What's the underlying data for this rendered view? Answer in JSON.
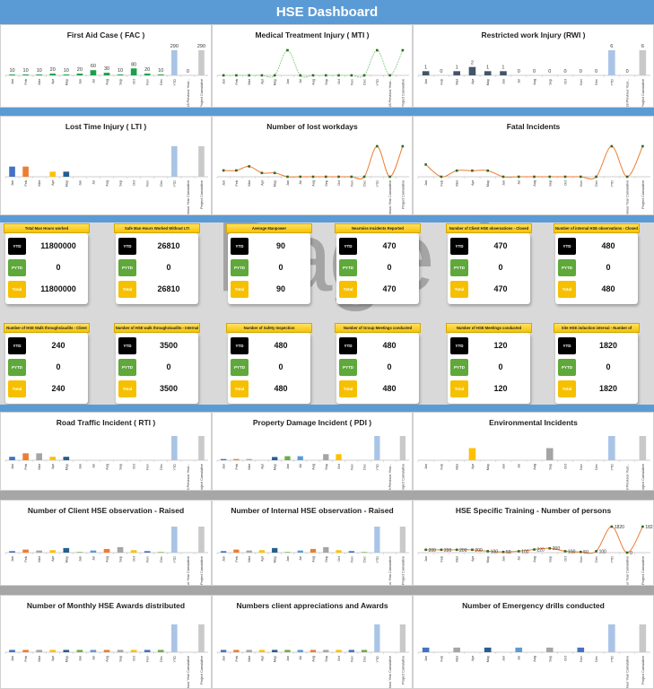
{
  "header": {
    "title": "HSE Dashboard"
  },
  "colors": {
    "header": "#5b9bd5",
    "ytd": "#000000",
    "pytd": "#5fa83a",
    "total": "#f6c000",
    "card_head": "#f5c400"
  },
  "watermark": "Page 1",
  "categories_full": [
    "Jan",
    "Feb",
    "Mar",
    "Apr",
    "May",
    "Jun",
    "Jul",
    "Aug",
    "Sep",
    "Oct",
    "Nov",
    "Dec",
    "YTD",
    "2018 Previous Year Cumulative",
    "Project Cumulative"
  ],
  "kpi_labels": {
    "ytd": "YTD",
    "pytd": "PYTD",
    "total": "Total"
  },
  "kpis": [
    {
      "title": "Total Man Hours worked",
      "ytd": "11800000",
      "pytd": "0",
      "total": "11800000"
    },
    {
      "title": "Safe Man Hours Worked Without LTI",
      "ytd": "26810",
      "pytd": "0",
      "total": "26810"
    },
    {
      "title": "Average Manpower",
      "ytd": "90",
      "pytd": "0",
      "total": "90"
    },
    {
      "title": "Nearmiss Incidents Reported",
      "ytd": "470",
      "pytd": "0",
      "total": "470"
    },
    {
      "title": "Number of Client HSE observations - Closed",
      "ytd": "470",
      "pytd": "0",
      "total": "470"
    },
    {
      "title": "Number of internal HSE observations - Closed",
      "ytd": "480",
      "pytd": "0",
      "total": "480"
    },
    {
      "title": "Number of HSE Walk throughs/audits - Client",
      "ytd": "240",
      "pytd": "0",
      "total": "240"
    },
    {
      "title": "Number of HSE walk throughs/audits - Internal",
      "ytd": "3500",
      "pytd": "0",
      "total": "3500"
    },
    {
      "title": "Number of Safety Inspection",
      "ytd": "480",
      "pytd": "0",
      "total": "480"
    },
    {
      "title": "Number of Group Meetings conducted",
      "ytd": "480",
      "pytd": "0",
      "total": "480"
    },
    {
      "title": "Number of HSE Meetings conducted",
      "ytd": "120",
      "pytd": "0",
      "total": "120"
    },
    {
      "title": "Site HSE induction internal - Number of",
      "ytd": "1820",
      "pytd": "0",
      "total": "1820"
    }
  ],
  "chart_data": [
    {
      "id": "fac",
      "type": "bar",
      "title": "First Aid Case ( FAC )",
      "categories": [
        "Jan",
        "Feb",
        "Mar",
        "Apr",
        "May",
        "Jun",
        "Jul",
        "Aug",
        "Sep",
        "Oct",
        "Nov",
        "Dec",
        "YTD",
        "2018 Previous Year...",
        "Project Cumulative"
      ],
      "values": [
        10,
        10,
        10,
        20,
        10,
        20,
        60,
        30,
        10,
        80,
        20,
        10,
        290,
        0,
        290
      ],
      "data_labels": true,
      "color": "#1aa04a"
    },
    {
      "id": "mti",
      "type": "line",
      "title": "Medical Treatment Injury ( MTI )",
      "categories": [
        "Jan",
        "Feb",
        "Mar",
        "Apr",
        "May",
        "Jun",
        "Jul",
        "Aug",
        "Sep",
        "Oct",
        "Nov",
        "Dec",
        "YTD",
        "2018 Previous Year...",
        "Project Cumulative"
      ],
      "values": [
        0,
        0,
        0,
        0,
        0,
        1,
        0,
        0,
        0,
        0,
        0,
        0,
        1,
        0,
        1
      ],
      "color": "#8fd18f",
      "dashed": true
    },
    {
      "id": "rwi",
      "type": "bar",
      "title": "Restricted work Injury (RWI )",
      "categories": [
        "Jan",
        "Feb",
        "Mar",
        "Apr",
        "May",
        "Jun",
        "Jul",
        "Aug",
        "Sep",
        "Oct",
        "Nov",
        "Dec",
        "YTD",
        "2018 Previous Year...",
        "Project Cumulative"
      ],
      "values": [
        1,
        0,
        1,
        2,
        1,
        1,
        0,
        0,
        0,
        0,
        0,
        0,
        6,
        0,
        6
      ],
      "data_labels": true,
      "color": "#44546a"
    },
    {
      "id": "lti",
      "type": "bar",
      "title": "Lost Time Injury ( LTI )",
      "categories": [
        "Jan",
        "Feb",
        "Mar",
        "Apr",
        "May",
        "Jun",
        "Jul",
        "Aug",
        "Sep",
        "Oct",
        "Nov",
        "Dec",
        "YTD",
        "2018 Previous Year Cumulative",
        "Project Cumulative"
      ],
      "values": [
        2,
        2,
        0,
        1,
        1,
        0,
        0,
        0,
        0,
        0,
        0,
        0,
        6,
        0,
        6
      ]
    },
    {
      "id": "lostdays",
      "type": "line",
      "title": "Number of lost workdays",
      "categories": [
        "Jan",
        "Feb",
        "Mar",
        "Apr",
        "May",
        "Jun",
        "Jul",
        "Aug",
        "Sep",
        "Oct",
        "Nov",
        "Dec",
        "YTD",
        "2018 Previous Year Cumulative",
        "Project Cumulative"
      ],
      "values": [
        2,
        2,
        3.3,
        1.2,
        1.2,
        0,
        0,
        0,
        0,
        0,
        0,
        0,
        9.7,
        0,
        9.7
      ],
      "color": "#ed7d31"
    },
    {
      "id": "fatal",
      "type": "line",
      "title": "Fatal Incidents",
      "categories": [
        "Jan",
        "Feb",
        "Mar",
        "Apr",
        "May",
        "Jun",
        "Jul",
        "Aug",
        "Sep",
        "Oct",
        "Nov",
        "Dec",
        "YTD",
        "2018 Previous Year Cumulative",
        "Project Cumulative"
      ],
      "values": [
        2,
        0,
        1,
        1,
        1,
        0,
        0,
        0,
        0,
        0,
        0,
        0,
        5,
        0,
        5
      ],
      "color": "#ed7d31"
    },
    {
      "id": "rti",
      "type": "bar",
      "title": "Road Traffic Incident ( RTI )",
      "categories": [
        "Jan",
        "Feb",
        "Mar",
        "Apr",
        "May",
        "Jun",
        "Jul",
        "Aug",
        "Sep",
        "Oct",
        "Nov",
        "Dec",
        "YTD",
        "2018 Previous Year...",
        "Project Cumulative"
      ],
      "values": [
        1,
        2,
        2,
        1,
        1,
        0,
        0,
        0,
        0,
        0,
        0,
        0,
        7,
        0,
        7
      ]
    },
    {
      "id": "pdi",
      "type": "bar",
      "title": "Property Damage Incident ( PDI )",
      "categories": [
        "Jan",
        "Feb",
        "Mar",
        "Apr",
        "May",
        "Jun",
        "Jul",
        "Aug",
        "Sep",
        "Oct",
        "Nov",
        "Dec",
        "YTD",
        "2018 Previous Year...",
        "Project Cumulative"
      ],
      "values": [
        0.3,
        0.3,
        0.3,
        0,
        0.8,
        1,
        1,
        0,
        1.5,
        1.5,
        0,
        0,
        6,
        0,
        6
      ]
    },
    {
      "id": "env",
      "type": "bar",
      "title": "Environmental Incidents",
      "categories": [
        "Jan",
        "Feb",
        "Mar",
        "Apr",
        "May",
        "Jun",
        "Jul",
        "Aug",
        "Sep",
        "Oct",
        "Nov",
        "Dec",
        "YTD",
        "2018 Previous Year...",
        "Project Cumulative"
      ],
      "values": [
        0,
        0,
        0,
        1,
        0,
        0,
        0,
        0,
        1,
        0,
        0,
        0,
        2,
        0,
        2
      ]
    },
    {
      "id": "clientobs",
      "type": "bar",
      "title": "Number of Client HSE observation - Raised",
      "categories": [
        "Jan",
        "Feb",
        "Mar",
        "Apr",
        "May",
        "Jun",
        "Jul",
        "Aug",
        "Sep",
        "Oct",
        "Nov",
        "Dec",
        "YTD",
        "2018 Previous Year Cumulative",
        "Project Cumulative"
      ],
      "values": [
        0.5,
        1,
        0.7,
        0.8,
        1.5,
        0.2,
        0.7,
        1.2,
        1.8,
        0.8,
        0.5,
        0.2,
        8.5,
        0,
        8.5
      ]
    },
    {
      "id": "internalobs",
      "type": "bar",
      "title": "Number of Internal HSE observation - Raised",
      "categories": [
        "Jan",
        "Feb",
        "Mar",
        "Apr",
        "May",
        "Jun",
        "Jul",
        "Aug",
        "Sep",
        "Oct",
        "Nov",
        "Dec",
        "YTD",
        "2018 Previous Year Cumulative",
        "Project Cumulative"
      ],
      "values": [
        0.5,
        1,
        0.7,
        0.8,
        1.5,
        0.2,
        0.7,
        1.2,
        1.8,
        0.8,
        0.5,
        0.2,
        8.5,
        0,
        8.5
      ]
    },
    {
      "id": "training",
      "type": "line",
      "title": "HSE Specific Training - Number of persons",
      "categories": [
        "Jan",
        "Feb",
        "Mar",
        "Apr",
        "May",
        "Jun",
        "Jul",
        "Aug",
        "Sep",
        "Oct",
        "Nov",
        "Dec",
        "YTD",
        "2018 Previous Year Cumulative",
        "Project Cumulative"
      ],
      "values": [
        200,
        200,
        200,
        200,
        100,
        50,
        100,
        220,
        300,
        100,
        50,
        100,
        1820,
        0,
        1820
      ],
      "data_labels": true,
      "color": "#ed7d31"
    },
    {
      "id": "awards",
      "type": "bar",
      "title": "Number of Monthly HSE Awards distributed",
      "categories": [
        "Jan",
        "Feb",
        "Mar",
        "Apr",
        "May",
        "Jun",
        "Jul",
        "Aug",
        "Sep",
        "Oct",
        "Nov",
        "Dec",
        "YTD",
        "2018 Previous Year Cumulative",
        "Project Cumulative"
      ],
      "values": [
        1,
        1,
        1,
        1,
        1,
        1,
        1,
        1,
        1,
        1,
        1,
        1,
        12,
        0,
        12
      ]
    },
    {
      "id": "appreciations",
      "type": "bar",
      "title": "Numbers client appreciations and Awards",
      "categories": [
        "Jan",
        "Feb",
        "Mar",
        "Apr",
        "May",
        "Jun",
        "Jul",
        "Aug",
        "Sep",
        "Oct",
        "Nov",
        "Dec",
        "YTD",
        "2018 Previous Year Cumulative",
        "Project Cumulative"
      ],
      "values": [
        1,
        1,
        1,
        1,
        1,
        1,
        1,
        1,
        1,
        1,
        1,
        1,
        12,
        0,
        12
      ]
    },
    {
      "id": "drills",
      "type": "bar",
      "title": "Number of Emergency drills conducted",
      "categories": [
        "Jan",
        "Feb",
        "Mar",
        "Apr",
        "May",
        "Jun",
        "Jul",
        "Aug",
        "Sep",
        "Oct",
        "Nov",
        "Dec",
        "YTD",
        "2018 Previous Year Cumulative",
        "Project Cumulative"
      ],
      "values": [
        1,
        0,
        1,
        0,
        1,
        0,
        1,
        0,
        1,
        0,
        1,
        0,
        6,
        0,
        6
      ]
    }
  ]
}
